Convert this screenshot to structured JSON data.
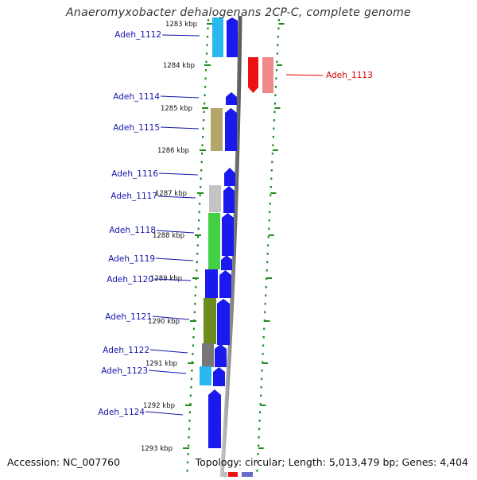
{
  "title": "Anaeromyxobacter dehalogenans 2CP-C, complete genome",
  "footer": {
    "accession": "Accession: NC_007760",
    "summary": "Topology: circular; Length: 5,013,479 bp; Genes: 4,404"
  },
  "colors": {
    "blue": "#1a1aee",
    "red": "#ee1111",
    "gene_label": "#1515aa",
    "gene_label_highlight": "#dd0000",
    "grid_green": "#1e8c1e",
    "backbone": "#8a8a8a"
  },
  "scale": {
    "kbp_labels": [
      "1283 kbp",
      "1284 kbp",
      "1285 kbp",
      "1286 kbp",
      "1287 kbp",
      "1288 kbp",
      "1289 kbp",
      "1290 kbp",
      "1291 kbp",
      "1292 kbp",
      "1293 kbp"
    ]
  },
  "genes": [
    {
      "id": "Adeh_1112",
      "color": "#1a1aee",
      "category_color": "#29b8f0"
    },
    {
      "id": "Adeh_1113",
      "color": "#ee1111",
      "category_color": "#f08a8a",
      "highlight": true
    },
    {
      "id": "Adeh_1114",
      "color": "#1a1aee"
    },
    {
      "id": "Adeh_1115",
      "color": "#1a1aee",
      "category_color": "#b3a66a"
    },
    {
      "id": "Adeh_1116",
      "color": "#1a1aee"
    },
    {
      "id": "Adeh_1117",
      "color": "#1a1aee",
      "category_color": "#c4c4c4"
    },
    {
      "id": "Adeh_1118",
      "color": "#1a1aee",
      "category_color": "#44d044"
    },
    {
      "id": "Adeh_1119",
      "color": "#1a1aee"
    },
    {
      "id": "Adeh_1120",
      "color": "#1a1aee",
      "category_color": "#1a1aee"
    },
    {
      "id": "Adeh_1121",
      "color": "#1a1aee",
      "category_color": "#6b8c1e"
    },
    {
      "id": "Adeh_1122",
      "color": "#1a1aee",
      "category_color": "#777777"
    },
    {
      "id": "Adeh_1123",
      "color": "#1a1aee",
      "category_color": "#29b8f0"
    },
    {
      "id": "Adeh_1124",
      "color": "#1a1aee"
    }
  ]
}
